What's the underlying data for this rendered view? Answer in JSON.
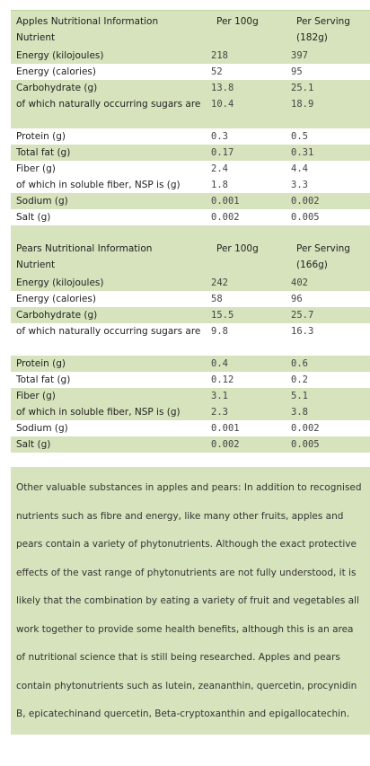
{
  "apples": {
    "header": {
      "col1_line1": "Apples Nutritional Information",
      "col1_line2": "Nutrient",
      "col2": "Per 100g",
      "col3_line1": "Per Serving",
      "col3_line2": "(182g)"
    },
    "rows": [
      {
        "label": "Energy (kilojoules)",
        "per100": "218",
        "serving": "397"
      },
      {
        "label": "Energy (calories)",
        "per100": "52",
        "serving": "95"
      },
      {
        "label": "Carbohydrate (g)",
        "per100": "13.8",
        "serving": "25.1"
      },
      {
        "label": "of which naturally occurring sugars are",
        "per100": "10.4",
        "serving": "18.9"
      },
      {
        "label": "Protein (g)",
        "per100": "0.3",
        "serving": "0.5"
      },
      {
        "label": "Total fat (g)",
        "per100": "0.17",
        "serving": "0.31"
      },
      {
        "label": "Fiber (g)",
        "per100": "2.4",
        "serving": "4.4"
      },
      {
        "label": "of which in soluble fiber, NSP is (g)",
        "per100": "1.8",
        "serving": "3.3"
      },
      {
        "label": "Sodium (g)",
        "per100": "0.001",
        "serving": "0.002"
      },
      {
        "label": "Salt (g)",
        "per100": "0.002",
        "serving": "0.005"
      }
    ]
  },
  "pears": {
    "header": {
      "col1_line1": "Pears Nutritional Information",
      "col1_line2": "Nutrient",
      "col2": "Per 100g",
      "col3_line1": "Per Serving",
      "col3_line2": "(166g)"
    },
    "rows": [
      {
        "label": "Energy (kilojoules)",
        "per100": "242",
        "serving": "402"
      },
      {
        "label": "Energy (calories)",
        "per100": "58",
        "serving": "96"
      },
      {
        "label": "Carbohydrate (g)",
        "per100": "15.5",
        "serving": "25.7"
      },
      {
        "label": "of which naturally occurring sugars are",
        "per100": "9.8",
        "serving": "16.3"
      },
      {
        "label": "Protein (g)",
        "per100": "0.4",
        "serving": "0.6"
      },
      {
        "label": "Total fat (g)",
        "per100": "0.12",
        "serving": "0.2"
      },
      {
        "label": "Fiber (g)",
        "per100": "3.1",
        "serving": "5.1"
      },
      {
        "label": "of which in soluble fiber, NSP is (g)",
        "per100": "2.3",
        "serving": "3.8"
      },
      {
        "label": "Sodium (g)",
        "per100": "0.001",
        "serving": "0.002"
      },
      {
        "label": "Salt (g)",
        "per100": "0.002",
        "serving": "0.005"
      }
    ]
  },
  "note": "Other valuable substances in apples and pears: In addition to recognised nutrients such as fibre and energy, like many other fruits, apples and pears contain a variety of phytonutrients. Although the exact protective effects of the vast range of phytonutrients are not fully understood, it is likely that the combination by eating a variety of fruit and vegetables all work together to provide some health benefits, although this is an area of nutritional science that is still being researched. Apples and pears contain phytonutrients such as lutein, zeananthin, quercetin, procynidin B, epicatechinand quercetin, Beta-cryptoxanthin and epigallocatechin.",
  "colors": {
    "band": "#d6e3bc",
    "white": "#ffffff"
  }
}
